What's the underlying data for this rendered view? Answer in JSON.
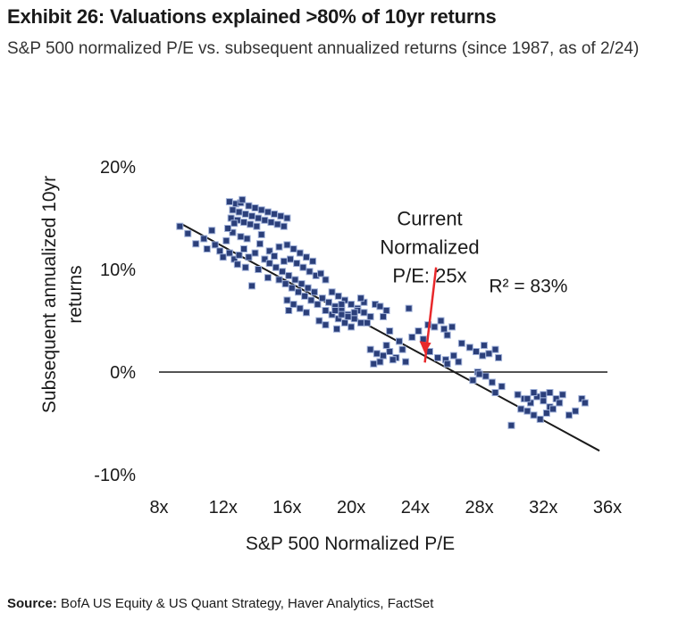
{
  "header": {
    "title": "Exhibit 26: Valuations explained >80% of 10yr returns",
    "subtitle": "S&P 500 normalized P/E vs. subsequent annualized returns (since 1987, as of 2/24)"
  },
  "footer": {
    "source_label": "Source:",
    "source_text": " BofA US Equity & US Quant Strategy, Haver Analytics, FactSet"
  },
  "chart_data": {
    "type": "scatter",
    "title": "",
    "xlabel": "S&P 500 Normalized P/E",
    "ylabel_lines": [
      "Subsequent annualized 10yr",
      "returns"
    ],
    "xlim": [
      8,
      36
    ],
    "ylim": [
      -10,
      20
    ],
    "x_ticks": [
      8,
      12,
      16,
      20,
      24,
      28,
      32,
      36
    ],
    "x_tick_labels": [
      "8x",
      "12x",
      "16x",
      "20x",
      "24x",
      "28x",
      "32x",
      "36x"
    ],
    "y_ticks": [
      20,
      10,
      0,
      -10
    ],
    "y_tick_labels": [
      "20%",
      "10%",
      "0%",
      "-10%"
    ],
    "grid": false,
    "marker_color": "#2b3f7a",
    "annotations": {
      "current_label_lines": [
        "Current",
        "Normalized",
        "P/E: 25x"
      ],
      "arrow_from": [
        25.3,
        10.2
      ],
      "arrow_to": [
        24.6,
        1.8
      ],
      "arrow_color": "#e8282b",
      "r2_label": "R² = 83%",
      "r2_position": [
        28.6,
        7.8
      ],
      "current_position": [
        24.9,
        14.3
      ]
    },
    "regression": {
      "slope": -0.847,
      "intercept": 22.4,
      "x_range": [
        9.5,
        35.5
      ],
      "color": "#1a1a1a"
    },
    "points": [
      [
        9.3,
        14.2
      ],
      [
        9.8,
        13.5
      ],
      [
        10.3,
        12.5
      ],
      [
        10.8,
        13.0
      ],
      [
        11.0,
        12.0
      ],
      [
        11.3,
        13.8
      ],
      [
        11.5,
        12.4
      ],
      [
        11.8,
        11.8
      ],
      [
        12.0,
        11.2
      ],
      [
        12.4,
        11.6
      ],
      [
        12.7,
        11.0
      ],
      [
        13.0,
        11.4
      ],
      [
        13.3,
        12.0
      ],
      [
        13.6,
        11.2
      ],
      [
        14.0,
        11.6
      ],
      [
        14.3,
        12.5
      ],
      [
        14.6,
        11.0
      ],
      [
        14.9,
        11.8
      ],
      [
        15.2,
        11.3
      ],
      [
        15.5,
        12.2
      ],
      [
        15.8,
        10.8
      ],
      [
        12.9,
        10.5
      ],
      [
        13.4,
        10.2
      ],
      [
        14.2,
        10.0
      ],
      [
        14.8,
        9.2
      ],
      [
        13.8,
        8.4
      ],
      [
        12.2,
        12.8
      ],
      [
        12.6,
        13.6
      ],
      [
        13.1,
        13.2
      ],
      [
        13.5,
        13.0
      ],
      [
        14.4,
        13.4
      ],
      [
        12.4,
        16.6
      ],
      [
        12.8,
        16.4
      ],
      [
        13.1,
        16.5
      ],
      [
        13.6,
        16.2
      ],
      [
        14.0,
        16.0
      ],
      [
        14.4,
        15.8
      ],
      [
        14.8,
        15.6
      ],
      [
        15.2,
        15.4
      ],
      [
        15.6,
        15.2
      ],
      [
        16.0,
        15.0
      ],
      [
        12.6,
        15.8
      ],
      [
        13.0,
        15.6
      ],
      [
        13.4,
        15.4
      ],
      [
        13.8,
        15.2
      ],
      [
        14.2,
        15.0
      ],
      [
        14.6,
        14.8
      ],
      [
        15.0,
        14.6
      ],
      [
        15.4,
        14.4
      ],
      [
        15.8,
        14.2
      ],
      [
        12.5,
        15.0
      ],
      [
        12.9,
        14.8
      ],
      [
        13.3,
        14.6
      ],
      [
        13.7,
        14.4
      ],
      [
        14.1,
        14.2
      ],
      [
        12.3,
        14.0
      ],
      [
        12.7,
        14.5
      ],
      [
        13.2,
        16.8
      ],
      [
        14.9,
        10.6
      ],
      [
        15.3,
        10.2
      ],
      [
        15.7,
        9.8
      ],
      [
        16.1,
        9.4
      ],
      [
        16.5,
        9.0
      ],
      [
        16.9,
        8.6
      ],
      [
        17.3,
        8.2
      ],
      [
        17.7,
        7.8
      ],
      [
        15.5,
        9.0
      ],
      [
        15.9,
        8.6
      ],
      [
        16.3,
        8.2
      ],
      [
        16.7,
        7.8
      ],
      [
        17.1,
        7.4
      ],
      [
        17.5,
        7.0
      ],
      [
        17.9,
        6.6
      ],
      [
        16.2,
        11.0
      ],
      [
        16.6,
        10.6
      ],
      [
        17.0,
        10.2
      ],
      [
        17.4,
        9.8
      ],
      [
        17.8,
        9.4
      ],
      [
        16.0,
        12.4
      ],
      [
        16.4,
        12.0
      ],
      [
        16.8,
        11.6
      ],
      [
        17.2,
        11.2
      ],
      [
        17.6,
        10.8
      ],
      [
        16.0,
        7.0
      ],
      [
        16.4,
        6.6
      ],
      [
        16.8,
        6.2
      ],
      [
        17.2,
        5.8
      ],
      [
        16.1,
        6.0
      ],
      [
        18.1,
        9.6
      ],
      [
        18.4,
        9.0
      ],
      [
        18.2,
        7.2
      ],
      [
        18.6,
        6.8
      ],
      [
        19.0,
        6.4
      ],
      [
        19.4,
        6.0
      ],
      [
        19.8,
        5.6
      ],
      [
        20.2,
        5.2
      ],
      [
        20.6,
        4.8
      ],
      [
        21.0,
        4.8
      ],
      [
        18.4,
        6.0
      ],
      [
        18.8,
        5.6
      ],
      [
        19.2,
        5.2
      ],
      [
        19.6,
        4.8
      ],
      [
        20.0,
        4.4
      ],
      [
        18.8,
        7.8
      ],
      [
        19.2,
        7.4
      ],
      [
        19.6,
        7.0
      ],
      [
        20.0,
        6.6
      ],
      [
        20.4,
        6.2
      ],
      [
        20.8,
        5.8
      ],
      [
        21.2,
        5.4
      ],
      [
        21.5,
        6.6
      ],
      [
        18.0,
        5.0
      ],
      [
        18.4,
        4.6
      ],
      [
        19.8,
        5.4
      ],
      [
        20.4,
        6.0
      ],
      [
        19.0,
        6.0
      ],
      [
        19.4,
        5.6
      ],
      [
        20.2,
        5.8
      ],
      [
        20.8,
        6.8
      ],
      [
        19.1,
        4.2
      ],
      [
        21.8,
        6.4
      ],
      [
        22.2,
        6.0
      ],
      [
        22.0,
        5.4
      ],
      [
        20.6,
        7.2
      ],
      [
        19.4,
        6.6
      ],
      [
        21.2,
        2.2
      ],
      [
        21.6,
        1.8
      ],
      [
        22.0,
        1.6
      ],
      [
        22.4,
        2.0
      ],
      [
        22.8,
        1.4
      ],
      [
        23.2,
        2.2
      ],
      [
        21.4,
        0.8
      ],
      [
        21.8,
        1.0
      ],
      [
        22.6,
        1.2
      ],
      [
        23.4,
        1.0
      ],
      [
        22.2,
        2.6
      ],
      [
        23.0,
        3.0
      ],
      [
        23.8,
        3.4
      ],
      [
        23.6,
        6.2
      ],
      [
        22.4,
        4.0
      ],
      [
        24.2,
        4.0
      ],
      [
        24.5,
        3.2
      ],
      [
        24.8,
        4.6
      ],
      [
        25.2,
        4.4
      ],
      [
        25.6,
        5.0
      ],
      [
        25.8,
        4.2
      ],
      [
        26.0,
        3.6
      ],
      [
        26.3,
        4.4
      ],
      [
        24.9,
        2.0
      ],
      [
        25.4,
        1.4
      ],
      [
        25.9,
        1.2
      ],
      [
        26.4,
        1.6
      ],
      [
        26.7,
        1.0
      ],
      [
        26.0,
        0.8
      ],
      [
        26.9,
        2.8
      ],
      [
        27.4,
        2.4
      ],
      [
        27.8,
        2.0
      ],
      [
        28.2,
        1.6
      ],
      [
        28.6,
        1.8
      ],
      [
        29.0,
        2.2
      ],
      [
        29.2,
        1.4
      ],
      [
        28.3,
        2.6
      ],
      [
        27.6,
        -0.8
      ],
      [
        27.9,
        0.0
      ],
      [
        28.4,
        -0.4
      ],
      [
        28.8,
        -1.0
      ],
      [
        29.0,
        -2.0
      ],
      [
        29.4,
        -1.4
      ],
      [
        28.0,
        -0.2
      ],
      [
        30.4,
        -2.2
      ],
      [
        30.8,
        -2.6
      ],
      [
        31.2,
        -3.0
      ],
      [
        31.6,
        -2.4
      ],
      [
        32.0,
        -2.8
      ],
      [
        32.4,
        -3.4
      ],
      [
        32.8,
        -2.6
      ],
      [
        33.2,
        -2.2
      ],
      [
        30.6,
        -3.6
      ],
      [
        31.0,
        -3.8
      ],
      [
        31.4,
        -4.2
      ],
      [
        31.8,
        -4.6
      ],
      [
        32.2,
        -4.0
      ],
      [
        32.6,
        -3.6
      ],
      [
        33.0,
        -3.0
      ],
      [
        33.6,
        -4.2
      ],
      [
        34.0,
        -3.8
      ],
      [
        34.4,
        -2.6
      ],
      [
        34.6,
        -3.0
      ],
      [
        30.0,
        -5.2
      ],
      [
        31.4,
        -2.0
      ],
      [
        32.0,
        -2.2
      ],
      [
        31.0,
        -2.6
      ],
      [
        32.4,
        -2.0
      ]
    ]
  }
}
